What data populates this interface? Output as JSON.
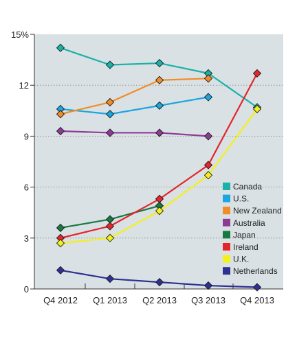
{
  "chart_data": {
    "type": "line",
    "categories": [
      "Q4 2012",
      "Q1 2013",
      "Q2 2013",
      "Q3 2013",
      "Q4 2013"
    ],
    "y_ticks": [
      {
        "value": 0,
        "label": "0"
      },
      {
        "value": 3,
        "label": "3"
      },
      {
        "value": 6,
        "label": "6"
      },
      {
        "value": 9,
        "label": "9"
      },
      {
        "value": 12,
        "label": "12"
      },
      {
        "value": 15,
        "label": "15%"
      }
    ],
    "ylim": [
      0,
      15
    ],
    "grid": "horizontal dotted",
    "legend_position": "lower-right",
    "background_color": "#d9e1e4",
    "series": [
      {
        "name": "Canada",
        "color": "#19b2a8",
        "values": [
          14.2,
          13.2,
          13.3,
          12.7,
          10.7
        ]
      },
      {
        "name": "U.S.",
        "color": "#1aa6e0",
        "values": [
          10.6,
          10.3,
          10.8,
          11.3,
          null
        ]
      },
      {
        "name": "New Zealand",
        "color": "#f28c28",
        "values": [
          10.3,
          11.0,
          12.3,
          12.4,
          null
        ]
      },
      {
        "name": "Australia",
        "color": "#8e3b96",
        "values": [
          9.3,
          9.2,
          9.2,
          9.0,
          null
        ]
      },
      {
        "name": "Japan",
        "color": "#177a43",
        "values": [
          3.6,
          4.1,
          4.9,
          null,
          null
        ]
      },
      {
        "name": "Ireland",
        "color": "#e3262b",
        "values": [
          3.0,
          3.7,
          5.3,
          7.3,
          12.7
        ]
      },
      {
        "name": "U.K.",
        "color": "#f5ef1b",
        "values": [
          2.7,
          3.0,
          4.6,
          6.7,
          10.6
        ]
      },
      {
        "name": "Netherlands",
        "color": "#2e3192",
        "values": [
          1.1,
          0.6,
          0.4,
          0.2,
          0.1
        ]
      }
    ]
  }
}
